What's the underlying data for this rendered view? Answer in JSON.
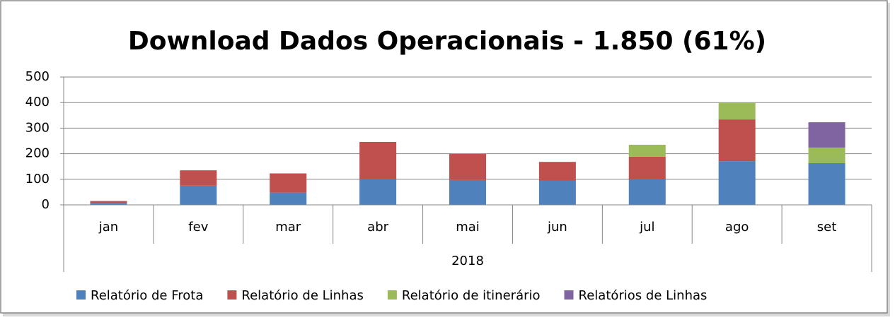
{
  "chart_data": {
    "type": "stacked_bar",
    "title": "Download Dados Operacionais - 1.850  (61%)",
    "categories": [
      "jan",
      "fev",
      "mar",
      "abr",
      "mai",
      "jun",
      "jul",
      "ago",
      "set"
    ],
    "category_group": "2018",
    "series": [
      {
        "name": "Relatório de Frota",
        "color": "#4f81bd",
        "values": [
          8,
          75,
          48,
          100,
          97,
          94,
          100,
          171,
          163
        ]
      },
      {
        "name": "Relatório de Linhas",
        "color": "#c0504d",
        "values": [
          7,
          60,
          75,
          146,
          102,
          74,
          88,
          163,
          null
        ]
      },
      {
        "name": "Relatório de itinerário",
        "color": "#9bbb59",
        "values": [
          null,
          null,
          null,
          null,
          null,
          null,
          47,
          66,
          61
        ]
      },
      {
        "name": "Relatórios de Linhas",
        "color": "#8064a2",
        "values": [
          null,
          null,
          null,
          null,
          null,
          null,
          null,
          null,
          99
        ]
      }
    ],
    "ylim": [
      0,
      500
    ],
    "yticks": [
      0,
      100,
      200,
      300,
      400,
      500
    ],
    "grid": true,
    "legend": "bottom"
  }
}
